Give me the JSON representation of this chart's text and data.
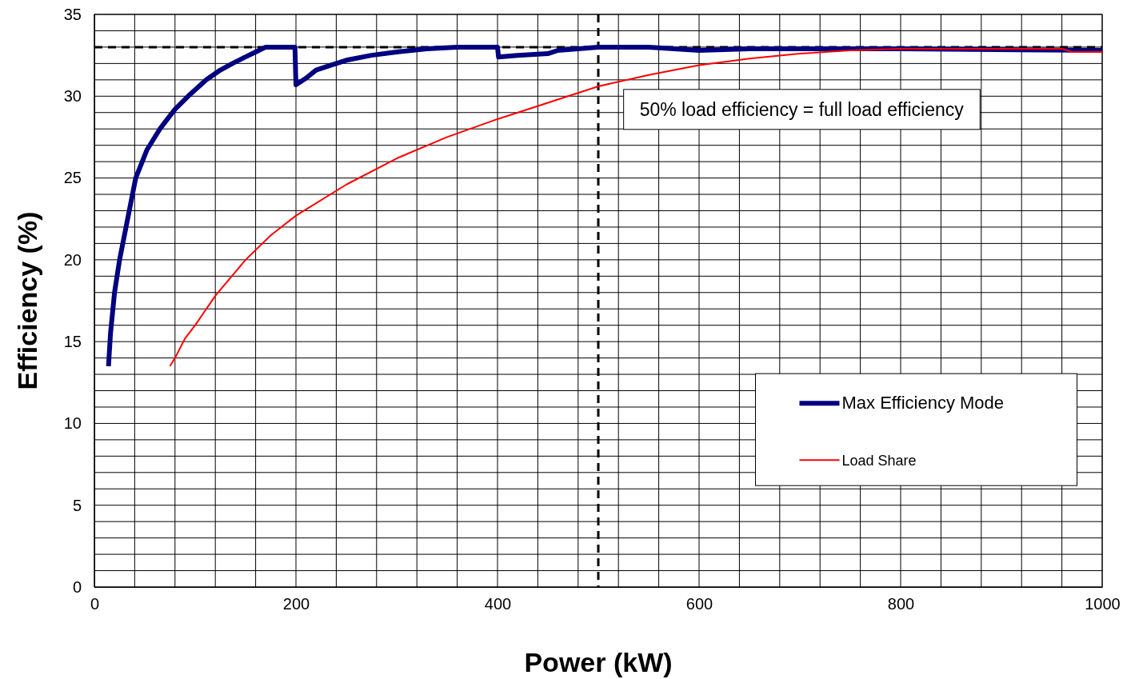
{
  "chart_data": {
    "type": "line",
    "xlabel": "Power (kW)",
    "ylabel": "Efficiency (%)",
    "xlim": [
      0,
      1000
    ],
    "ylim": [
      0,
      35
    ],
    "xticks": [
      0,
      {
        "value": 40,
        "label": null
      },
      {
        "value": 80,
        "label": null
      },
      {
        "value": 120,
        "label": null
      },
      {
        "value": 160,
        "label": null
      },
      200,
      {
        "value": 240,
        "label": null
      },
      {
        "value": 280,
        "label": null
      },
      {
        "value": 320,
        "label": null
      },
      {
        "value": 360,
        "label": null
      },
      400,
      {
        "value": 440,
        "label": null
      },
      {
        "value": 480,
        "label": null
      },
      {
        "value": 520,
        "label": null
      },
      {
        "value": 560,
        "label": null
      },
      600,
      {
        "value": 640,
        "label": null
      },
      {
        "value": 680,
        "label": null
      },
      {
        "value": 720,
        "label": null
      },
      {
        "value": 760,
        "label": null
      },
      800,
      {
        "value": 840,
        "label": null
      },
      {
        "value": 880,
        "label": null
      },
      {
        "value": 920,
        "label": null
      },
      {
        "value": 960,
        "label": null
      },
      1000
    ],
    "yticks": [
      0,
      {
        "value": 1,
        "label": null
      },
      {
        "value": 2,
        "label": null
      },
      {
        "value": 3,
        "label": null
      },
      {
        "value": 4,
        "label": null
      },
      5,
      {
        "value": 6,
        "label": null
      },
      {
        "value": 7,
        "label": null
      },
      {
        "value": 8,
        "label": null
      },
      {
        "value": 9,
        "label": null
      },
      10,
      {
        "value": 11,
        "label": null
      },
      {
        "value": 12,
        "label": null
      },
      {
        "value": 13,
        "label": null
      },
      {
        "value": 14,
        "label": null
      },
      15,
      {
        "value": 16,
        "label": null
      },
      {
        "value": 17,
        "label": null
      },
      {
        "value": 18,
        "label": null
      },
      {
        "value": 19,
        "label": null
      },
      20,
      {
        "value": 21,
        "label": null
      },
      {
        "value": 22,
        "label": null
      },
      {
        "value": 23,
        "label": null
      },
      {
        "value": 24,
        "label": null
      },
      25,
      {
        "value": 26,
        "label": null
      },
      {
        "value": 27,
        "label": null
      },
      {
        "value": 28,
        "label": null
      },
      {
        "value": 29,
        "label": null
      },
      30,
      {
        "value": 31,
        "label": null
      },
      {
        "value": 32,
        "label": null
      },
      {
        "value": 33,
        "label": null
      },
      {
        "value": 34,
        "label": null
      },
      35
    ],
    "grid": true,
    "legend": "bottom right",
    "marker": "none",
    "series": [
      {
        "name": "Max Efficiency Mode",
        "color": "#000080",
        "x": [
          14,
          16,
          20,
          25,
          33,
          41,
          52,
          65,
          80,
          93,
          111,
          125,
          137,
          150,
          160,
          170,
          199,
          200,
          210,
          220,
          235,
          250,
          275,
          300,
          330,
          360,
          400,
          401,
          420,
          450,
          460,
          500,
          550,
          600,
          650,
          700,
          800,
          1000
        ],
        "values": [
          13.5,
          15.5,
          18,
          20,
          22.5,
          25,
          26.7,
          28,
          29.2,
          30,
          31,
          31.6,
          32,
          32.4,
          32.7,
          33,
          33,
          30.7,
          31.1,
          31.6,
          31.9,
          32.2,
          32.5,
          32.7,
          32.9,
          33,
          33,
          32.4,
          32.5,
          32.6,
          32.8,
          33,
          33,
          32.8,
          32.9,
          32.9,
          32.9,
          32.8
        ]
      },
      {
        "name": "Load Share",
        "color": "#ff0000",
        "x": [
          75,
          80,
          90,
          100,
          120,
          150,
          175,
          200,
          250,
          300,
          350,
          400,
          450,
          500,
          550,
          600,
          650,
          700,
          750,
          800,
          960,
          970,
          1000
        ],
        "values": [
          13.5,
          14,
          15.2,
          16,
          17.8,
          20,
          21.5,
          22.7,
          24.6,
          26.2,
          27.5,
          28.6,
          29.6,
          30.6,
          31.3,
          31.9,
          32.3,
          32.6,
          32.8,
          32.9,
          32.9,
          32.7,
          32.7
        ]
      }
    ],
    "ref_lines": [
      {
        "axis": "y",
        "value": 33,
        "line_style": "dashed",
        "color": "#000000"
      },
      {
        "axis": "x",
        "value": 500,
        "line_style": "dashed",
        "color": "#000000"
      }
    ],
    "annotations": [
      "50% load efficiency = full load efficiency"
    ]
  }
}
